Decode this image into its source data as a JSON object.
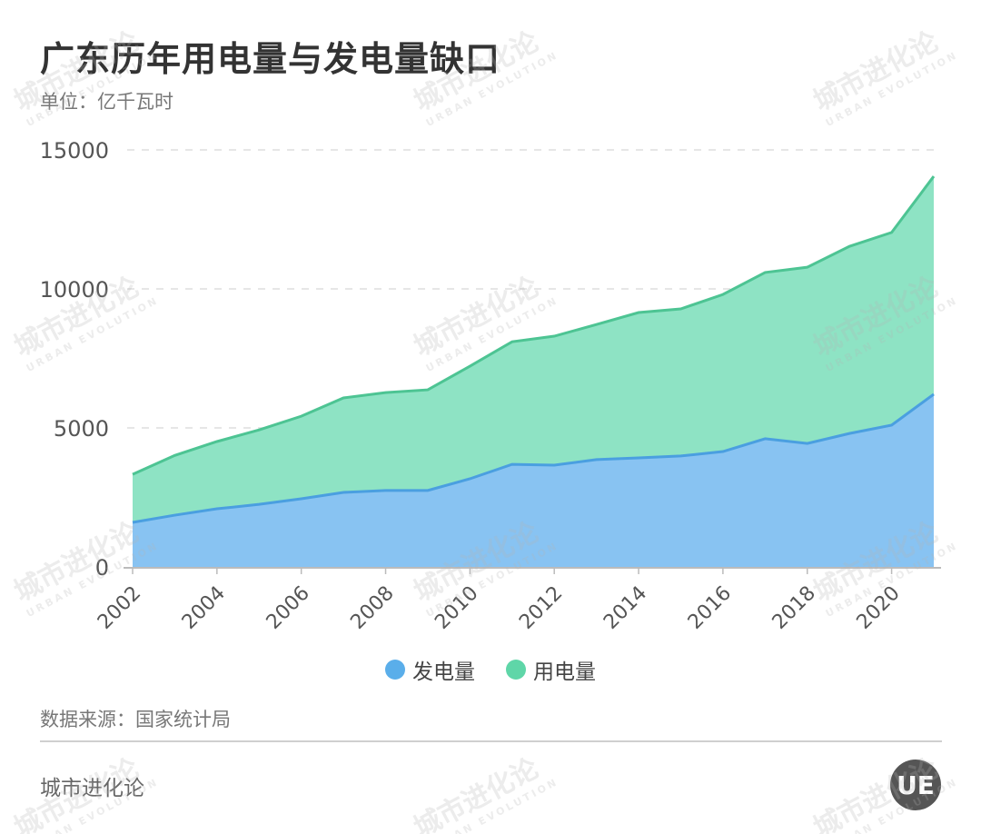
{
  "header": {
    "title": "广东历年用电量与发电量缺口",
    "unit": "单位：亿千瓦时"
  },
  "legend": [
    {
      "label": "发电量",
      "color": "#5aaeea"
    },
    {
      "label": "用电量",
      "color": "#5fd6a8"
    }
  ],
  "footer": {
    "source": "数据来源：国家统计局",
    "brand": "城市进化论",
    "logo_text": "UE"
  },
  "watermark": {
    "text": "城市进化论",
    "sub": "URBAN EVOLUTION"
  },
  "colors": {
    "generation_fill": "#88c3f2",
    "generation_line": "#4a9fe0",
    "consumption_fill": "#8ee3c4",
    "consumption_line": "#4dc493",
    "grid": "#dddddd",
    "axis": "#bbbbbb"
  },
  "chart_data": {
    "type": "area",
    "stacked": true,
    "title": "广东历年用电量与发电量缺口",
    "subtitle": "单位：亿千瓦时",
    "xlabel": "",
    "ylabel": "",
    "ylim": [
      0,
      15000
    ],
    "yticks": [
      0,
      5000,
      10000,
      15000
    ],
    "xticks": [
      "2002",
      "2004",
      "2006",
      "2008",
      "2010",
      "2012",
      "2014",
      "2016",
      "2018",
      "2020"
    ],
    "grid": "horizontal dashed",
    "legend_position": "bottom",
    "x": [
      2002,
      2003,
      2004,
      2005,
      2006,
      2007,
      2008,
      2009,
      2010,
      2011,
      2012,
      2013,
      2014,
      2015,
      2016,
      2017,
      2018,
      2019,
      2020,
      2021
    ],
    "series": [
      {
        "name": "发电量",
        "values": [
          1600,
          1860,
          2090,
          2250,
          2450,
          2680,
          2750,
          2750,
          3170,
          3690,
          3660,
          3860,
          3920,
          3990,
          4150,
          4610,
          4440,
          4800,
          5100,
          6210
        ]
      },
      {
        "name": "用电量",
        "values": [
          1730,
          2150,
          2420,
          2680,
          2970,
          3400,
          3520,
          3620,
          4050,
          4410,
          4640,
          4860,
          5230,
          5290,
          5650,
          5980,
          6340,
          6730,
          6930,
          7840
        ]
      }
    ]
  }
}
